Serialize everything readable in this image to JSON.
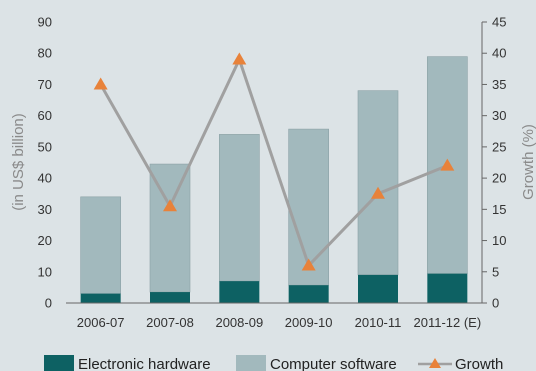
{
  "chart_data": {
    "type": "bar",
    "stacked": true,
    "categories": [
      "2006-07",
      "2007-08",
      "2008-09",
      "2009-10",
      "2010-11",
      "2011-12 (E)"
    ],
    "series": [
      {
        "name": "Electronic hardware",
        "type": "bar",
        "axis": "left",
        "color": "#0d6163",
        "values": [
          3,
          3.5,
          7,
          5.7,
          9,
          9.4
        ]
      },
      {
        "name": "Computer software",
        "type": "bar",
        "axis": "left",
        "color": "#a2b9bd",
        "values": [
          31,
          41,
          47,
          50,
          59,
          69.5
        ]
      },
      {
        "name": "Growth",
        "type": "line",
        "axis": "right",
        "line_color": "#a0a0a0",
        "marker_color": "#e8823a",
        "marker": "triangle",
        "values": [
          35,
          15.5,
          39,
          6,
          17.5,
          22
        ]
      }
    ],
    "ylabel": "(in US$ billion)",
    "y2label": "Growth (%)",
    "ylim": [
      0,
      90
    ],
    "y2lim": [
      0,
      45
    ],
    "yticks": [
      0,
      10,
      20,
      30,
      40,
      50,
      60,
      70,
      80,
      90
    ],
    "y2ticks": [
      0,
      5,
      10,
      15,
      20,
      25,
      30,
      35,
      40,
      45
    ],
    "grid": false,
    "legend_position": "bottom"
  }
}
